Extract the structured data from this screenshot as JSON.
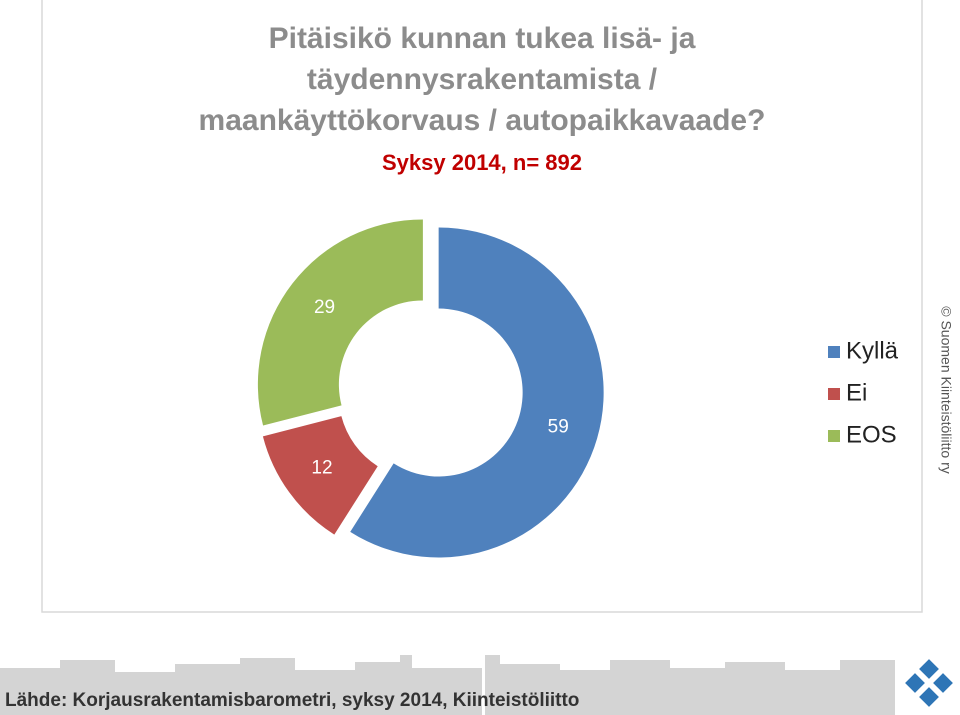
{
  "chart_data": {
    "type": "donut",
    "title": [
      "Pitäisikö kunnan tukea lisä- ja",
      "täydennysrakentamista /",
      "maankäyttökorvaus / autopaikkavaade?"
    ],
    "subtitle": "Syksy 2014, n= 892",
    "categories": [
      "Kyllä",
      "Ei",
      "EOS"
    ],
    "values": [
      59,
      12,
      29
    ],
    "colors": [
      "#4f81bd",
      "#c0504d",
      "#9bbb59"
    ],
    "legend": "right"
  },
  "copyright": "© Suomen Kiinteistöliitto ry",
  "source": "Lähde: Korjausrakentamisbarometri, syksy 2014, Kiinteistöliitto"
}
